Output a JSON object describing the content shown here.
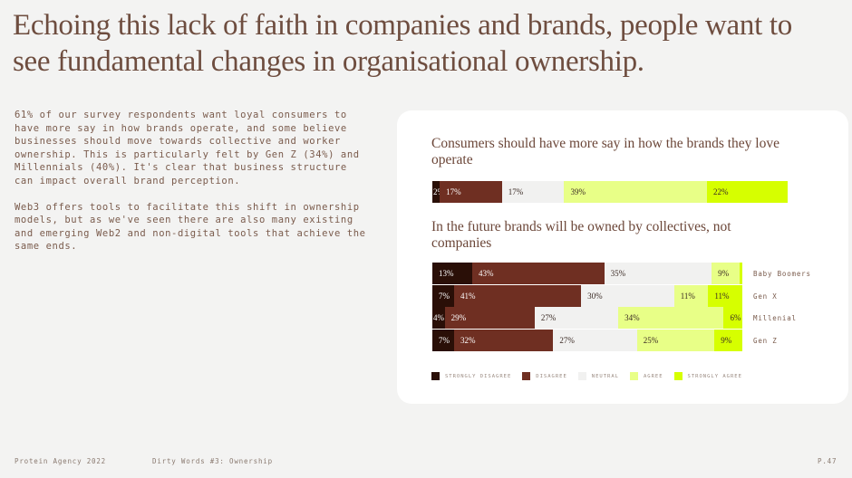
{
  "title": "Echoing this lack of faith in companies and brands, people want to see fundamental changes in organisational ownership.",
  "body": {
    "paragraph1": "61% of our survey respondents want loyal consumers to have more say in how brands operate, and some believe businesses should move towards collective and worker ownership. This is particularly felt by Gen Z (34%) and Millennials (40%). It's clear that business structure can impact overall brand perception.",
    "paragraph2": "Web3 offers tools to facilitate this shift in ownership models, but as we've seen there are also many existing and emerging Web2 and non-digital tools that achieve the same ends."
  },
  "colors": {
    "strongly_disagree": "#2a0f07",
    "disagree": "#6f2f22",
    "neutral": "#f1f1f0",
    "agree": "#e8ff87",
    "strongly_agree": "#d6ff00"
  },
  "chart_data": [
    {
      "type": "bar",
      "stacked": true,
      "orientation": "horizontal",
      "title": "Consumers should have more say in how the brands they love operate",
      "categories": [
        ""
      ],
      "series": [
        {
          "name": "STRONGLY DISAGREE",
          "values": [
            2
          ],
          "labels": [
            "2%"
          ]
        },
        {
          "name": "DISAGREE",
          "values": [
            17
          ],
          "labels": [
            "17%"
          ]
        },
        {
          "name": "NEUTRAL",
          "values": [
            17
          ],
          "labels": [
            "17%"
          ]
        },
        {
          "name": "AGREE",
          "values": [
            39
          ],
          "labels": [
            "39%"
          ]
        },
        {
          "name": "STRONGLY AGREE",
          "values": [
            22
          ],
          "labels": [
            "22%"
          ]
        }
      ]
    },
    {
      "type": "bar",
      "stacked": true,
      "orientation": "horizontal",
      "title": "In the future brands will be owned by collectives, not companies",
      "categories": [
        "Baby Boomers",
        "Gen X",
        "Millenial",
        "Gen Z"
      ],
      "series": [
        {
          "name": "STRONGLY DISAGREE",
          "values": [
            13,
            7,
            4,
            7
          ],
          "labels": [
            "13%",
            "7%",
            "4%",
            "7%"
          ]
        },
        {
          "name": "DISAGREE",
          "values": [
            43,
            41,
            29,
            32
          ],
          "labels": [
            "43%",
            "41%",
            "29%",
            "32%"
          ]
        },
        {
          "name": "NEUTRAL",
          "values": [
            35,
            30,
            27,
            27
          ],
          "labels": [
            "35%",
            "30%",
            "27%",
            "27%"
          ]
        },
        {
          "name": "AGREE",
          "values": [
            9,
            11,
            34,
            25
          ],
          "labels": [
            "9%",
            "11%",
            "34%",
            "25%"
          ]
        },
        {
          "name": "STRONGLY AGREE",
          "values": [
            1,
            11,
            6,
            9
          ],
          "labels": [
            "",
            "11%",
            "6%",
            "9%"
          ]
        }
      ]
    }
  ],
  "legend": [
    "STRONGLY DISAGREE",
    "DISAGREE",
    "NEUTRAL",
    "AGREE",
    "STRONGLY AGREE"
  ],
  "footer": {
    "left": "Protein Agency 2022",
    "middle": "Dirty Words #3: Ownership",
    "page": "P.47"
  }
}
